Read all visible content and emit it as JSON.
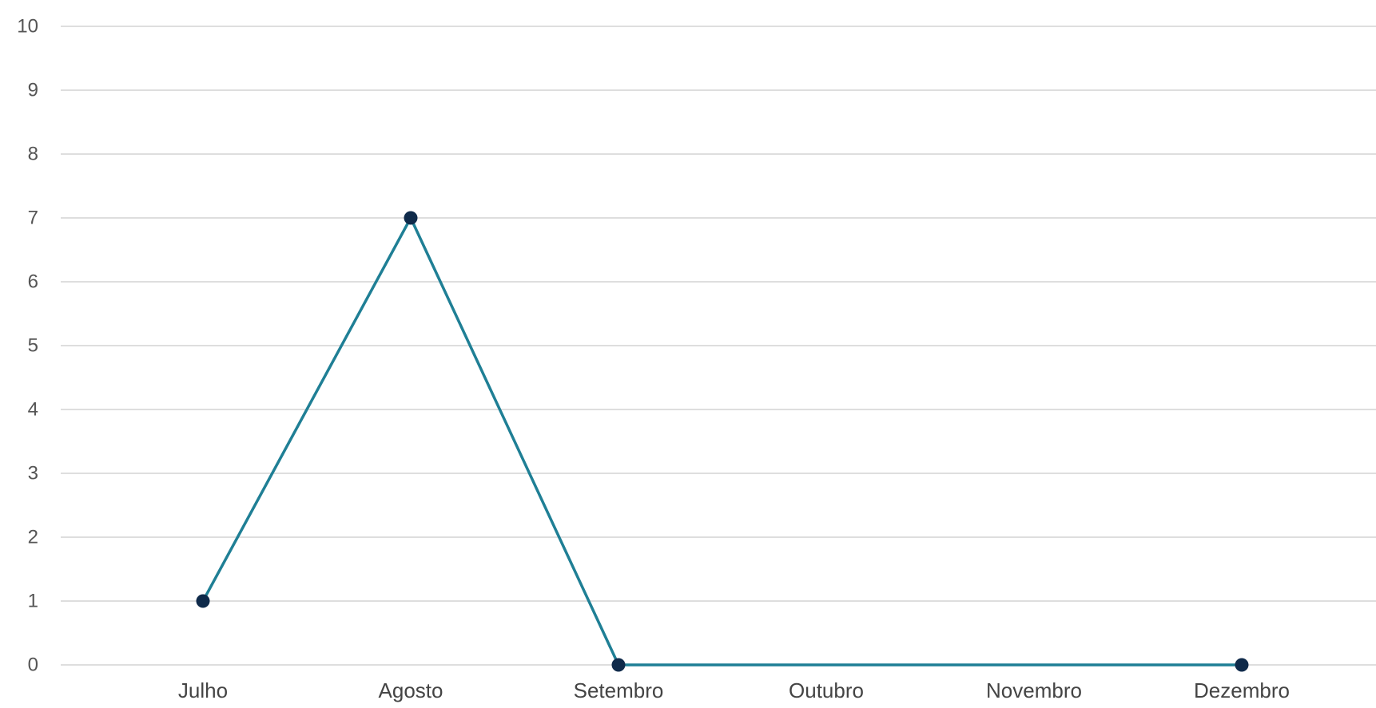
{
  "chart_data": {
    "type": "line",
    "categories": [
      "Julho",
      "Agosto",
      "Setembro",
      "Outubro",
      "Novembro",
      "Dezembro"
    ],
    "series": [
      {
        "values": [
          1,
          7,
          0,
          null,
          null,
          0
        ],
        "color": "#1f7f95",
        "marker_color": "#0f2a4a"
      }
    ],
    "ylim": [
      0,
      10
    ],
    "yticks": [
      0,
      1,
      2,
      3,
      4,
      5,
      6,
      7,
      8,
      9,
      10
    ],
    "grid": true,
    "connect_gaps": true
  }
}
